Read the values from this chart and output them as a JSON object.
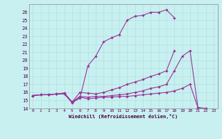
{
  "xlabel": "Windchill (Refroidissement éolien,°C)",
  "bg_color": "#c8f0f0",
  "line_color": "#993399",
  "grid_color": "#b0e0e0",
  "xlim": [
    -0.5,
    23.5
  ],
  "ylim": [
    14,
    27
  ],
  "xticks": [
    0,
    1,
    2,
    3,
    4,
    5,
    6,
    7,
    8,
    9,
    10,
    11,
    12,
    13,
    14,
    15,
    16,
    17,
    18,
    19,
    20,
    21,
    22,
    23
  ],
  "yticks": [
    14,
    15,
    16,
    17,
    18,
    19,
    20,
    21,
    22,
    23,
    24,
    25,
    26
  ],
  "lines": [
    {
      "x": [
        0,
        1,
        2,
        3,
        4,
        5,
        6,
        7,
        8,
        9,
        10,
        11,
        12,
        13,
        14,
        15,
        16,
        17,
        18
      ],
      "y": [
        15.6,
        15.7,
        15.7,
        15.8,
        15.8,
        14.7,
        15.3,
        19.3,
        20.5,
        22.3,
        22.8,
        23.2,
        25.0,
        25.5,
        25.6,
        26.0,
        26.0,
        26.3,
        25.3
      ]
    },
    {
      "x": [
        0,
        1,
        2,
        3,
        4,
        5,
        6,
        7,
        8,
        9,
        10,
        11,
        12,
        13,
        14,
        15,
        16,
        17,
        18
      ],
      "y": [
        15.6,
        15.7,
        15.7,
        15.8,
        15.9,
        14.8,
        16.0,
        15.9,
        15.8,
        16.0,
        16.3,
        16.6,
        17.0,
        17.3,
        17.6,
        18.0,
        18.3,
        18.7,
        21.2
      ]
    },
    {
      "x": [
        0,
        1,
        2,
        3,
        4,
        5,
        6,
        7,
        8,
        9,
        10,
        11,
        12,
        13,
        14,
        15,
        16,
        17,
        18,
        19,
        20,
        21,
        22
      ],
      "y": [
        15.6,
        15.7,
        15.7,
        15.8,
        15.9,
        14.8,
        15.5,
        15.4,
        15.5,
        15.5,
        15.6,
        15.7,
        15.8,
        16.0,
        16.2,
        16.5,
        16.7,
        17.0,
        18.7,
        20.5,
        21.2,
        14.1,
        14.0
      ]
    },
    {
      "x": [
        0,
        1,
        2,
        3,
        4,
        5,
        6,
        7,
        8,
        9,
        10,
        11,
        12,
        13,
        14,
        15,
        16,
        17,
        18,
        19,
        20,
        21,
        22
      ],
      "y": [
        15.6,
        15.7,
        15.7,
        15.8,
        15.9,
        14.8,
        15.4,
        15.2,
        15.3,
        15.4,
        15.4,
        15.5,
        15.5,
        15.6,
        15.7,
        15.8,
        15.9,
        16.0,
        16.2,
        16.5,
        17.0,
        14.1,
        14.0
      ]
    }
  ]
}
